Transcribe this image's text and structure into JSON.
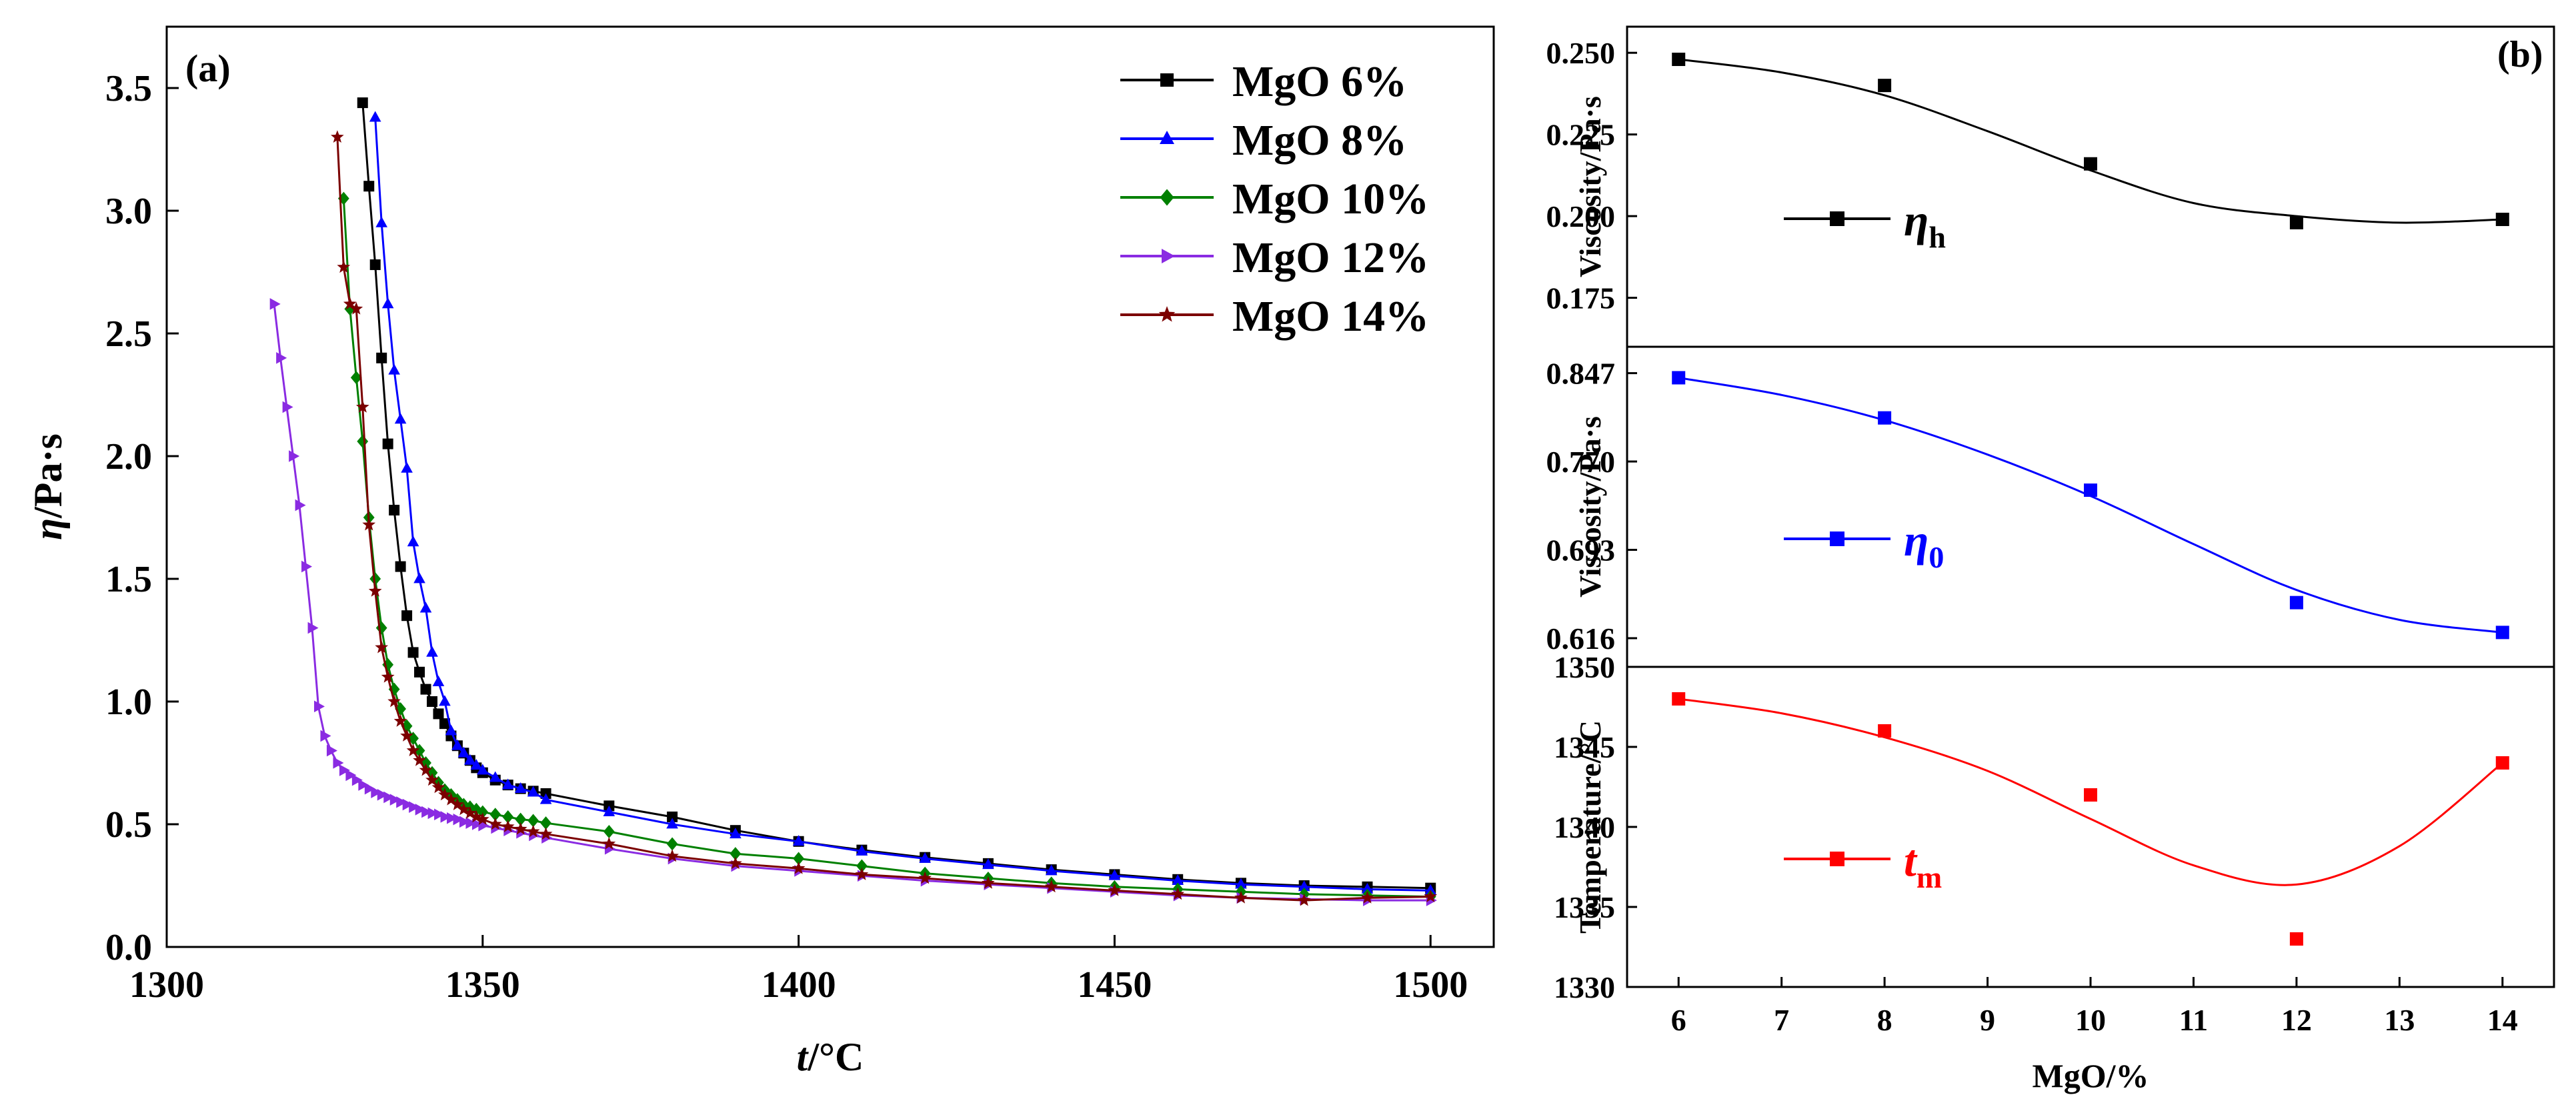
{
  "chart_data": [
    {
      "type": "line",
      "panel_label": "(a)",
      "xlabel_main": "t",
      "xlabel_unit": "/°C",
      "ylabel_main": "η",
      "ylabel_unit": "/Pa·s",
      "xlim": [
        1300,
        1510
      ],
      "ylim": [
        0,
        3.75
      ],
      "xticks": [
        "1300",
        "1350",
        "1400",
        "1450",
        "1500"
      ],
      "yticks": [
        "0.0",
        "0.5",
        "1.0",
        "1.5",
        "2.0",
        "2.5",
        "3.0",
        "3.5"
      ],
      "series": [
        {
          "name": "MgO 6%",
          "color": "#000000",
          "marker": "square",
          "x": [
            1331,
            1332,
            1333,
            1334,
            1335,
            1336,
            1337,
            1338,
            1339,
            1340,
            1341,
            1342,
            1343,
            1344,
            1345,
            1346,
            1347,
            1348,
            1349,
            1350,
            1352,
            1354,
            1356,
            1358,
            1360,
            1370,
            1380,
            1390,
            1400,
            1410,
            1420,
            1430,
            1440,
            1450,
            1460,
            1470,
            1480,
            1490,
            1500
          ],
          "y": [
            3.44,
            3.1,
            2.78,
            2.4,
            2.05,
            1.78,
            1.55,
            1.35,
            1.2,
            1.12,
            1.05,
            1.0,
            0.95,
            0.91,
            0.86,
            0.82,
            0.79,
            0.76,
            0.73,
            0.71,
            0.68,
            0.66,
            0.645,
            0.635,
            0.625,
            0.575,
            0.53,
            0.475,
            0.43,
            0.395,
            0.365,
            0.34,
            0.315,
            0.295,
            0.275,
            0.26,
            0.25,
            0.245,
            0.24
          ]
        },
        {
          "name": "MgO 8%",
          "color": "#0000ff",
          "marker": "triangle",
          "x": [
            1333,
            1334,
            1335,
            1336,
            1337,
            1338,
            1339,
            1340,
            1341,
            1342,
            1343,
            1344,
            1345,
            1346,
            1347,
            1348,
            1349,
            1350,
            1352,
            1354,
            1356,
            1358,
            1360,
            1370,
            1380,
            1390,
            1400,
            1410,
            1420,
            1430,
            1440,
            1450,
            1460,
            1470,
            1480,
            1490,
            1500
          ],
          "y": [
            3.38,
            2.95,
            2.62,
            2.35,
            2.15,
            1.95,
            1.65,
            1.5,
            1.38,
            1.2,
            1.08,
            1.0,
            0.88,
            0.82,
            0.79,
            0.76,
            0.74,
            0.72,
            0.69,
            0.66,
            0.645,
            0.63,
            0.6,
            0.55,
            0.5,
            0.46,
            0.43,
            0.39,
            0.36,
            0.335,
            0.31,
            0.29,
            0.27,
            0.255,
            0.245,
            0.235,
            0.23
          ]
        },
        {
          "name": "MgO 10%",
          "color": "#008000",
          "marker": "diamond",
          "x": [
            1328,
            1329,
            1330,
            1331,
            1332,
            1333,
            1334,
            1335,
            1336,
            1337,
            1338,
            1339,
            1340,
            1341,
            1342,
            1343,
            1344,
            1345,
            1346,
            1347,
            1348,
            1349,
            1350,
            1352,
            1354,
            1356,
            1358,
            1360,
            1370,
            1380,
            1390,
            1400,
            1410,
            1420,
            1430,
            1440,
            1450,
            1460,
            1470,
            1480,
            1490,
            1500
          ],
          "y": [
            3.05,
            2.6,
            2.32,
            2.06,
            1.75,
            1.5,
            1.3,
            1.15,
            1.05,
            0.97,
            0.9,
            0.85,
            0.8,
            0.75,
            0.71,
            0.67,
            0.64,
            0.62,
            0.6,
            0.58,
            0.57,
            0.56,
            0.55,
            0.54,
            0.53,
            0.52,
            0.515,
            0.505,
            0.47,
            0.42,
            0.38,
            0.36,
            0.33,
            0.3,
            0.28,
            0.26,
            0.245,
            0.235,
            0.225,
            0.215,
            0.21,
            0.205
          ]
        },
        {
          "name": "MgO 12%",
          "color": "#8a2be2",
          "marker": "triangle-right",
          "x": [
            1317,
            1318,
            1319,
            1320,
            1321,
            1322,
            1323,
            1324,
            1325,
            1326,
            1327,
            1328,
            1329,
            1330,
            1331,
            1332,
            1333,
            1334,
            1335,
            1336,
            1337,
            1338,
            1339,
            1340,
            1341,
            1342,
            1343,
            1344,
            1345,
            1346,
            1347,
            1348,
            1349,
            1350,
            1352,
            1354,
            1356,
            1358,
            1360,
            1370,
            1380,
            1390,
            1400,
            1410,
            1420,
            1430,
            1440,
            1450,
            1460,
            1470,
            1480,
            1490,
            1500
          ],
          "y": [
            2.62,
            2.4,
            2.2,
            2.0,
            1.8,
            1.55,
            1.3,
            0.98,
            0.86,
            0.8,
            0.75,
            0.72,
            0.7,
            0.68,
            0.66,
            0.645,
            0.63,
            0.62,
            0.61,
            0.6,
            0.59,
            0.58,
            0.57,
            0.56,
            0.55,
            0.545,
            0.54,
            0.53,
            0.525,
            0.52,
            0.51,
            0.505,
            0.5,
            0.495,
            0.485,
            0.475,
            0.465,
            0.455,
            0.445,
            0.4,
            0.36,
            0.33,
            0.31,
            0.29,
            0.27,
            0.255,
            0.24,
            0.225,
            0.21,
            0.2,
            0.195,
            0.19,
            0.19
          ]
        },
        {
          "name": "MgO 14%",
          "color": "#7b0000",
          "marker": "star",
          "x": [
            1327,
            1328,
            1329,
            1330,
            1331,
            1332,
            1333,
            1334,
            1335,
            1336,
            1337,
            1338,
            1339,
            1340,
            1341,
            1342,
            1343,
            1344,
            1345,
            1346,
            1347,
            1348,
            1349,
            1350,
            1352,
            1354,
            1356,
            1358,
            1360,
            1370,
            1380,
            1390,
            1400,
            1410,
            1420,
            1430,
            1440,
            1450,
            1460,
            1470,
            1480,
            1490,
            1500
          ],
          "y": [
            3.3,
            2.77,
            2.62,
            2.6,
            2.2,
            1.72,
            1.45,
            1.22,
            1.1,
            1.0,
            0.92,
            0.86,
            0.8,
            0.76,
            0.72,
            0.68,
            0.65,
            0.62,
            0.6,
            0.58,
            0.56,
            0.545,
            0.53,
            0.52,
            0.5,
            0.49,
            0.48,
            0.47,
            0.46,
            0.42,
            0.37,
            0.34,
            0.32,
            0.295,
            0.28,
            0.26,
            0.245,
            0.23,
            0.215,
            0.2,
            0.19,
            0.2,
            0.205
          ]
        }
      ]
    },
    {
      "type": "scatter",
      "panel_label": "(b)",
      "xlabel": "MgO/%",
      "xlim": [
        5.5,
        14.5
      ],
      "xticks": [
        "6",
        "7",
        "8",
        "9",
        "10",
        "11",
        "12",
        "13",
        "14"
      ],
      "panels": [
        {
          "ylabel": "Viscosity/Pa·s",
          "legend_main": "η",
          "legend_sub": "h",
          "color": "#000000",
          "ylim": [
            0.16,
            0.258
          ],
          "yticks": [
            "0.175",
            "0.200",
            "0.225",
            "0.250"
          ],
          "x": [
            6,
            8,
            10,
            12,
            14
          ],
          "y": [
            0.248,
            0.24,
            0.216,
            0.198,
            0.199
          ],
          "fit_x": [
            6,
            7,
            8,
            9,
            10,
            11,
            12,
            13,
            14
          ],
          "fit_y": [
            0.248,
            0.244,
            0.237,
            0.226,
            0.214,
            0.204,
            0.2,
            0.198,
            0.199
          ]
        },
        {
          "ylabel": "Viscosity/Pa·s",
          "legend_main": "η",
          "legend_sub": "0",
          "color": "#0000ff",
          "ylim": [
            0.591,
            0.87
          ],
          "yticks": [
            "0.616",
            "0.693",
            "0.770",
            "0.847"
          ],
          "x": [
            6,
            8,
            10,
            12,
            14
          ],
          "y": [
            0.843,
            0.808,
            0.745,
            0.647,
            0.621
          ],
          "fit_x": [
            6,
            7,
            8,
            9,
            10,
            11,
            12,
            13,
            14
          ],
          "fit_y": [
            0.843,
            0.828,
            0.806,
            0.776,
            0.74,
            0.698,
            0.658,
            0.632,
            0.621
          ]
        },
        {
          "ylabel": "Temperature/°C",
          "legend_main": "t",
          "legend_sub": "m",
          "color": "#ff0000",
          "ylim": [
            1330,
            1350
          ],
          "yticks": [
            "1330",
            "1335",
            "1340",
            "1345",
            "1350"
          ],
          "x": [
            6,
            8,
            10,
            12,
            14
          ],
          "y": [
            1348,
            1346,
            1342,
            1333,
            1344
          ],
          "fit_x": [
            6,
            7,
            8,
            9,
            10,
            11,
            12,
            13,
            14
          ],
          "fit_y": [
            1348,
            1347.1,
            1345.6,
            1343.5,
            1340.5,
            1337.6,
            1336.4,
            1338.8,
            1344
          ]
        }
      ]
    }
  ]
}
